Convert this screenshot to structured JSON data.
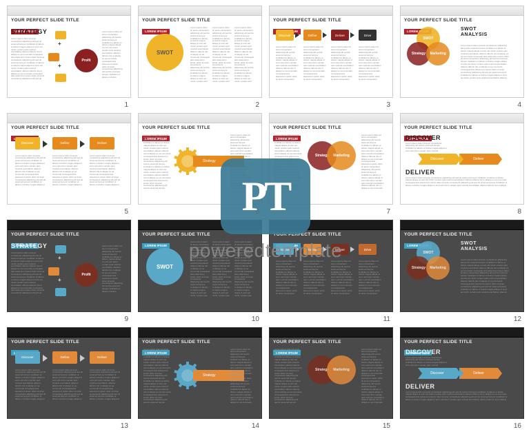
{
  "watermark": {
    "logo_text": "PT",
    "caption": "poweredtemplate",
    "logo_bg": "#3a7a94"
  },
  "common": {
    "title": "YOUR PERFECT SLIDE TITLE",
    "badge": "LOREM IPSUM",
    "filler": "Lorem ipsum dolor sit amet consectetur adipiscing elit sed do eiusmod tempor incididunt ut labore et dolore magna aliqua ut enim ad minim veniam quis nostrud exercitation ullamco laboris nisi ut aliquip ex ea commodo consequat duis aute"
  },
  "light": {
    "badge_bg": "#b5212a",
    "accent1": "#f0b42a",
    "accent2": "#e68a1e",
    "accent3": "#8a2020",
    "accent4": "#c94820"
  },
  "darkc": {
    "badge_bg": "#3aa0c4",
    "accent1": "#5aa8c8",
    "accent2": "#e08a3a",
    "accent3": "#7a3020",
    "accent4": "#c06a30"
  },
  "slides": [
    {
      "n": 1,
      "theme": "light",
      "kind": "strategy",
      "h": "STRATEGY",
      "center": "Profit"
    },
    {
      "n": 2,
      "theme": "light",
      "kind": "swot1",
      "big": "SWOT"
    },
    {
      "n": 3,
      "theme": "light",
      "kind": "flow4",
      "labels": [
        "Discover",
        "Define",
        "Deliver",
        "Drive"
      ]
    },
    {
      "n": 4,
      "theme": "light",
      "kind": "venn",
      "h": "SWOT ANALYSIS",
      "c": [
        "SWOT",
        "Strategy",
        "Marketing"
      ]
    },
    {
      "n": 5,
      "theme": "light",
      "kind": "flow3",
      "labels": [
        "Discover",
        "Define",
        "Deliver"
      ]
    },
    {
      "n": 6,
      "theme": "light",
      "kind": "gear",
      "center": "Strategy"
    },
    {
      "n": 7,
      "theme": "light",
      "kind": "venn2",
      "c": [
        "Strategy",
        "Marketing"
      ]
    },
    {
      "n": 8,
      "theme": "light",
      "kind": "dd",
      "h1": "DISCOVER",
      "h2": "DELIVER",
      "labels": [
        "Discover",
        "Deliver"
      ]
    },
    {
      "n": 9,
      "theme": "dark",
      "kind": "strategy",
      "h": "STRATEGY",
      "center": "Profit"
    },
    {
      "n": 10,
      "theme": "dark",
      "kind": "swot1",
      "big": "SWOT"
    },
    {
      "n": 11,
      "theme": "dark",
      "kind": "flow4",
      "labels": [
        "Discover",
        "Define",
        "Deliver",
        "Drive"
      ]
    },
    {
      "n": 12,
      "theme": "dark",
      "kind": "venn",
      "h": "SWOT ANALYSIS",
      "c": [
        "SWOT",
        "Strategy",
        "Marketing"
      ]
    },
    {
      "n": 13,
      "theme": "dark",
      "kind": "flow3",
      "labels": [
        "Discover",
        "Define",
        "Deliver"
      ]
    },
    {
      "n": 14,
      "theme": "dark",
      "kind": "gear",
      "center": "Strategy"
    },
    {
      "n": 15,
      "theme": "dark",
      "kind": "venn2",
      "c": [
        "Strategy",
        "Marketing"
      ]
    },
    {
      "n": 16,
      "theme": "dark",
      "kind": "dd",
      "h1": "DISCOVER",
      "h2": "DELIVER",
      "labels": [
        "Discover",
        "Deliver"
      ]
    }
  ]
}
